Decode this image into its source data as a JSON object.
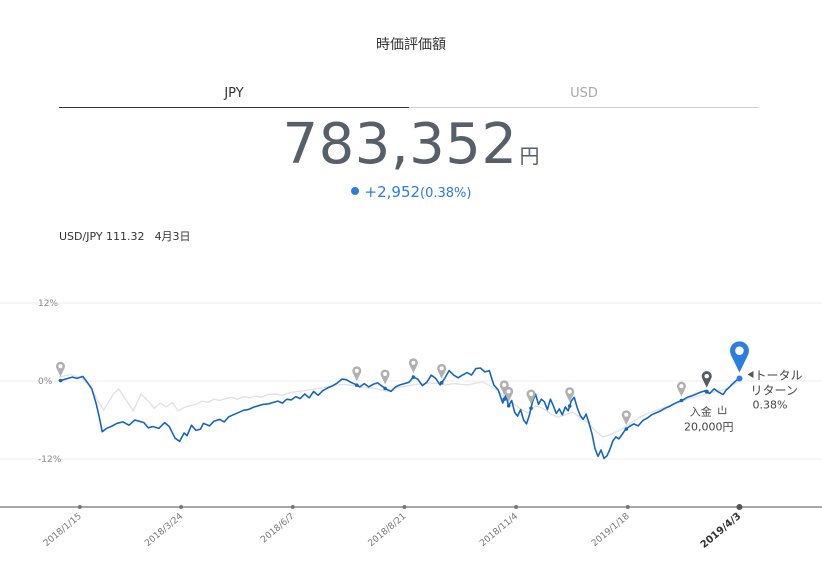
{
  "header": {
    "title": "時価評価額"
  },
  "tabs": [
    {
      "label": "JPY",
      "active": true
    },
    {
      "label": "USD",
      "active": false
    }
  ],
  "valuation": {
    "amount": "783,352",
    "unit": "円"
  },
  "change": {
    "amount": "+2,952",
    "percent": "(0.38%)"
  },
  "fx": {
    "pair": "USD/JPY 111.32",
    "date": "4月3日"
  },
  "colors": {
    "primary": "#1565c0",
    "accent": "#2b7de0",
    "benchmark": "#e2e2e2",
    "marker": "#b0b0b0"
  },
  "chart_data": {
    "type": "line",
    "ylim": [
      -14,
      12
    ],
    "y_ticks": [
      {
        "v": 12,
        "label": "12%"
      },
      {
        "v": 0,
        "label": "0%"
      },
      {
        "v": -12,
        "label": "-12%"
      }
    ],
    "x_ticks": [
      {
        "day": 14,
        "label": "2018/1/15"
      },
      {
        "day": 82,
        "label": "2018/3/24"
      },
      {
        "day": 157,
        "label": "2018/6/7"
      },
      {
        "day": 232,
        "label": "2018/8/21"
      },
      {
        "day": 307,
        "label": "2018/11/4"
      },
      {
        "day": 382,
        "label": "2019/1/18"
      },
      {
        "day": 457,
        "label": "2019/4/3",
        "bold": true
      }
    ],
    "series": [
      {
        "name": "portfolio",
        "points": [
          [
            0,
            0
          ],
          [
            3,
            0.2
          ],
          [
            6,
            0.4
          ],
          [
            9,
            0.6
          ],
          [
            12,
            0.4
          ],
          [
            16,
            0.7
          ],
          [
            19,
            -0.2
          ],
          [
            22,
            -1.2
          ],
          [
            25,
            -3.5
          ],
          [
            27,
            -5.5
          ],
          [
            29,
            -7.8
          ],
          [
            32,
            -7.3
          ],
          [
            35,
            -7.0
          ],
          [
            39,
            -6.5
          ],
          [
            43,
            -6.3
          ],
          [
            47,
            -6.8
          ],
          [
            51,
            -6.0
          ],
          [
            54,
            -6.2
          ],
          [
            57,
            -6.4
          ],
          [
            60,
            -7.2
          ],
          [
            63,
            -7.0
          ],
          [
            67,
            -7.3
          ],
          [
            71,
            -6.4
          ],
          [
            74,
            -7.0
          ],
          [
            78,
            -8.8
          ],
          [
            81,
            -9.3
          ],
          [
            84,
            -8.0
          ],
          [
            86,
            -8.4
          ],
          [
            89,
            -6.8
          ],
          [
            92,
            -7.6
          ],
          [
            95,
            -7.4
          ],
          [
            97,
            -6.5
          ],
          [
            101,
            -6.9
          ],
          [
            104,
            -6.2
          ],
          [
            108,
            -5.9
          ],
          [
            111,
            -6.3
          ],
          [
            114,
            -5.5
          ],
          [
            117,
            -5.2
          ],
          [
            121,
            -4.8
          ],
          [
            124,
            -4.5
          ],
          [
            127,
            -4.4
          ],
          [
            131,
            -4.0
          ],
          [
            134,
            -3.8
          ],
          [
            137,
            -3.6
          ],
          [
            141,
            -3.5
          ],
          [
            144,
            -3.3
          ],
          [
            147,
            -3.1
          ],
          [
            150,
            -3.4
          ],
          [
            153,
            -2.8
          ],
          [
            156,
            -2.9
          ],
          [
            159,
            -2.4
          ],
          [
            162,
            -2.7
          ],
          [
            165,
            -2.0
          ],
          [
            168,
            -2.6
          ],
          [
            171,
            -1.6
          ],
          [
            174,
            -2.2
          ],
          [
            177,
            -1.5
          ],
          [
            181,
            -1.0
          ],
          [
            184,
            -0.7
          ],
          [
            187,
            -0.3
          ],
          [
            190,
            0.3
          ],
          [
            193,
            0.2
          ],
          [
            196,
            -0.2
          ],
          [
            199,
            -0.5
          ],
          [
            202,
            -0.9
          ],
          [
            205,
            -0.4
          ],
          [
            208,
            -0.9
          ],
          [
            211,
            -0.5
          ],
          [
            214,
            -0.3
          ],
          [
            217,
            -0.8
          ],
          [
            220,
            -1.3
          ],
          [
            223,
            -1.6
          ],
          [
            226,
            -0.9
          ],
          [
            229,
            -0.6
          ],
          [
            232,
            -0.4
          ],
          [
            235,
            -0.2
          ],
          [
            238,
            0.6
          ],
          [
            241,
            0.3
          ],
          [
            244,
            -0.7
          ],
          [
            247,
            -0.2
          ],
          [
            250,
            0.9
          ],
          [
            253,
            0.4
          ],
          [
            256,
            -0.6
          ],
          [
            259,
            0.4
          ],
          [
            262,
            1.6
          ],
          [
            265,
            0.9
          ],
          [
            268,
            0.5
          ],
          [
            271,
            0.9
          ],
          [
            274,
            1.3
          ],
          [
            277,
            0.9
          ],
          [
            280,
            1.9
          ],
          [
            283,
            2.0
          ],
          [
            286,
            1.4
          ],
          [
            289,
            1.6
          ],
          [
            292,
            -0.6
          ],
          [
            295,
            -1.4
          ],
          [
            298,
            -3.4
          ],
          [
            300,
            -2.2
          ],
          [
            302,
            -3.8
          ],
          [
            304,
            -3.0
          ],
          [
            306,
            -4.8
          ],
          [
            308,
            -5.4
          ],
          [
            310,
            -4.4
          ],
          [
            312,
            -6.0
          ],
          [
            314,
            -6.6
          ],
          [
            316,
            -5.2
          ],
          [
            318,
            -3.2
          ],
          [
            320,
            -2.0
          ],
          [
            322,
            -3.6
          ],
          [
            324,
            -2.8
          ],
          [
            326,
            -3.2
          ],
          [
            328,
            -4.4
          ],
          [
            330,
            -2.8
          ],
          [
            332,
            -3.8
          ],
          [
            334,
            -5.0
          ],
          [
            336,
            -4.3
          ],
          [
            338,
            -5.2
          ],
          [
            340,
            -4.0
          ],
          [
            342,
            -4.6
          ],
          [
            344,
            -3.1
          ],
          [
            346,
            -2.5
          ],
          [
            348,
            -4.1
          ],
          [
            350,
            -5.3
          ],
          [
            352,
            -5.9
          ],
          [
            354,
            -5.1
          ],
          [
            356,
            -6.5
          ],
          [
            358,
            -8.2
          ],
          [
            360,
            -10.4
          ],
          [
            362,
            -11.6
          ],
          [
            364,
            -10.6
          ],
          [
            366,
            -11.9
          ],
          [
            368,
            -11.5
          ],
          [
            370,
            -10.5
          ],
          [
            372,
            -9.2
          ],
          [
            374,
            -8.6
          ],
          [
            376,
            -8.9
          ],
          [
            378,
            -8.3
          ],
          [
            380,
            -7.6
          ],
          [
            383,
            -7.0
          ],
          [
            386,
            -6.6
          ],
          [
            389,
            -6.9
          ],
          [
            392,
            -6.1
          ],
          [
            395,
            -5.7
          ],
          [
            398,
            -5.2
          ],
          [
            401,
            -4.9
          ],
          [
            404,
            -4.6
          ],
          [
            407,
            -4.2
          ],
          [
            410,
            -3.9
          ],
          [
            413,
            -3.5
          ],
          [
            416,
            -3.2
          ],
          [
            419,
            -2.9
          ],
          [
            422,
            -2.5
          ],
          [
            425,
            -2.3
          ],
          [
            428,
            -2.0
          ],
          [
            431,
            -1.7
          ],
          [
            434,
            -1.5
          ],
          [
            437,
            -1.9
          ],
          [
            440,
            -1.2
          ],
          [
            443,
            -1.7
          ],
          [
            446,
            -2.1
          ],
          [
            448,
            -1.4
          ],
          [
            450,
            -1.0
          ],
          [
            452,
            -0.5
          ],
          [
            454,
            -0.1
          ],
          [
            456,
            0.3
          ],
          [
            457,
            0.38
          ]
        ]
      },
      {
        "name": "benchmark",
        "points": [
          [
            0,
            0.6
          ],
          [
            8,
            1.0
          ],
          [
            16,
            0.4
          ],
          [
            22,
            -1.2
          ],
          [
            26,
            -3.0
          ],
          [
            30,
            -4.5
          ],
          [
            36,
            -2.2
          ],
          [
            40,
            -1.2
          ],
          [
            45,
            -2.9
          ],
          [
            50,
            -4.6
          ],
          [
            55,
            -2.0
          ],
          [
            60,
            -3.1
          ],
          [
            64,
            -4.2
          ],
          [
            68,
            -3.4
          ],
          [
            72,
            -4.0
          ],
          [
            76,
            -3.3
          ],
          [
            80,
            -4.6
          ],
          [
            84,
            -4.1
          ],
          [
            88,
            -3.8
          ],
          [
            92,
            -3.6
          ],
          [
            96,
            -3.1
          ],
          [
            100,
            -3.3
          ],
          [
            104,
            -2.8
          ],
          [
            108,
            -3.0
          ],
          [
            112,
            -2.7
          ],
          [
            116,
            -2.5
          ],
          [
            120,
            -2.8
          ],
          [
            124,
            -2.4
          ],
          [
            128,
            -2.6
          ],
          [
            132,
            -2.3
          ],
          [
            136,
            -2.5
          ],
          [
            140,
            -2.1
          ],
          [
            145,
            -2.0
          ],
          [
            150,
            -2.2
          ],
          [
            155,
            -1.8
          ],
          [
            160,
            -1.6
          ],
          [
            165,
            -1.5
          ],
          [
            170,
            -1.3
          ],
          [
            175,
            -1.1
          ],
          [
            180,
            -0.9
          ],
          [
            185,
            -0.7
          ],
          [
            190,
            -0.5
          ],
          [
            195,
            -0.6
          ],
          [
            200,
            -0.8
          ],
          [
            205,
            -1.0
          ],
          [
            210,
            -1.1
          ],
          [
            215,
            -1.3
          ],
          [
            220,
            -1.6
          ],
          [
            225,
            -1.2
          ],
          [
            230,
            -0.9
          ],
          [
            235,
            -0.7
          ],
          [
            240,
            -0.5
          ],
          [
            245,
            -0.4
          ],
          [
            250,
            -0.3
          ],
          [
            255,
            -0.4
          ],
          [
            260,
            -0.6
          ],
          [
            265,
            -0.4
          ],
          [
            270,
            -0.5
          ],
          [
            275,
            -0.6
          ],
          [
            280,
            -0.3
          ],
          [
            285,
            -0.2
          ],
          [
            290,
            -0.8
          ],
          [
            295,
            -1.5
          ],
          [
            300,
            -2.6
          ],
          [
            305,
            -3.4
          ],
          [
            310,
            -4.3
          ],
          [
            315,
            -4.9
          ],
          [
            320,
            -3.8
          ],
          [
            325,
            -4.2
          ],
          [
            330,
            -5.0
          ],
          [
            335,
            -5.6
          ],
          [
            340,
            -5.2
          ],
          [
            345,
            -4.8
          ],
          [
            350,
            -5.6
          ],
          [
            355,
            -6.4
          ],
          [
            360,
            -7.6
          ],
          [
            365,
            -8.6
          ],
          [
            370,
            -8.3
          ],
          [
            375,
            -7.7
          ],
          [
            380,
            -7.1
          ],
          [
            385,
            -6.3
          ],
          [
            390,
            -5.6
          ],
          [
            395,
            -5.0
          ],
          [
            400,
            -4.6
          ],
          [
            405,
            -4.2
          ],
          [
            410,
            -3.8
          ],
          [
            415,
            -3.4
          ],
          [
            420,
            -3.0
          ],
          [
            425,
            -2.6
          ],
          [
            430,
            -2.3
          ],
          [
            435,
            -2.0
          ],
          [
            440,
            -1.7
          ],
          [
            445,
            -1.4
          ],
          [
            450,
            -1.0
          ],
          [
            455,
            -0.3
          ],
          [
            457,
            0.1
          ]
        ]
      }
    ],
    "event_markers": [
      {
        "day": 1
      },
      {
        "day": 200
      },
      {
        "day": 219
      },
      {
        "day": 238
      },
      {
        "day": 257
      },
      {
        "day": 299
      },
      {
        "day": 302
      },
      {
        "day": 317
      },
      {
        "day": 343
      },
      {
        "day": 381
      },
      {
        "day": 418
      }
    ],
    "deposit": {
      "day": 435,
      "label": "入金",
      "amount": "20,000円"
    },
    "total_return": {
      "day": 457,
      "label_line1": "トータル",
      "label_line2": "リターン",
      "value": "0.38%"
    }
  }
}
